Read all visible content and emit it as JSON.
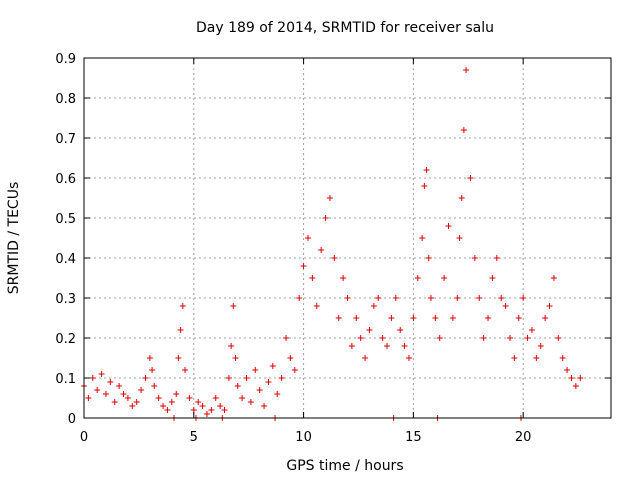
{
  "chart_data": {
    "type": "scatter",
    "title": "Day 189 of 2014, SRMTID for receiver salu",
    "xlabel": "GPS time / hours",
    "ylabel": "SRMTID / TECUs",
    "xlim": [
      0,
      24
    ],
    "ylim": [
      0,
      0.9
    ],
    "x_ticks": [
      0,
      5,
      10,
      15,
      20
    ],
    "x_tick_labels": [
      "0",
      "5",
      "10",
      "15",
      "20"
    ],
    "y_ticks": [
      0,
      0.1,
      0.2,
      0.3,
      0.4,
      0.5,
      0.6,
      0.7,
      0.8,
      0.9
    ],
    "y_tick_labels": [
      "0",
      "0.1",
      "0.2",
      "0.3",
      "0.4",
      "0.5",
      "0.6",
      "0.7",
      "0.8",
      "0.9"
    ],
    "grid": true,
    "marker": "+",
    "series": [
      {
        "name": "SRMTID",
        "color": "#e00000",
        "x": [
          0.0,
          0.2,
          0.4,
          0.6,
          0.8,
          1.0,
          1.2,
          1.4,
          1.6,
          1.8,
          2.0,
          2.2,
          2.4,
          2.6,
          2.8,
          3.0,
          3.1,
          3.2,
          3.4,
          3.6,
          3.8,
          4.0,
          4.2,
          4.3,
          4.4,
          4.5,
          4.6,
          4.8,
          5.0,
          5.2,
          5.4,
          5.6,
          5.8,
          6.0,
          6.2,
          6.4,
          6.6,
          6.7,
          6.8,
          6.9,
          7.0,
          7.2,
          7.4,
          7.6,
          7.8,
          8.0,
          8.2,
          8.4,
          8.6,
          8.8,
          9.0,
          9.2,
          9.4,
          9.6,
          9.8,
          10.0,
          10.2,
          10.4,
          10.6,
          10.8,
          11.0,
          11.2,
          11.4,
          11.6,
          11.8,
          12.0,
          12.2,
          12.4,
          12.6,
          12.8,
          13.0,
          13.2,
          13.4,
          13.6,
          13.8,
          14.0,
          14.2,
          14.4,
          14.6,
          14.8,
          15.0,
          15.2,
          15.4,
          15.5,
          15.6,
          15.7,
          15.8,
          16.0,
          16.2,
          16.4,
          16.6,
          16.8,
          17.0,
          17.1,
          17.2,
          17.3,
          17.4,
          17.6,
          17.8,
          18.0,
          18.2,
          18.4,
          18.6,
          18.8,
          19.0,
          19.2,
          19.4,
          19.6,
          19.8,
          20.0,
          20.2,
          20.4,
          20.6,
          20.8,
          21.0,
          21.2,
          21.4,
          21.6,
          21.8,
          22.0,
          22.2,
          22.4,
          22.6,
          4.1,
          5.1,
          6.3,
          8.7,
          14.1,
          16.1,
          19.9
        ],
        "y": [
          0.08,
          0.05,
          0.1,
          0.07,
          0.11,
          0.06,
          0.09,
          0.04,
          0.08,
          0.06,
          0.05,
          0.03,
          0.04,
          0.07,
          0.1,
          0.15,
          0.12,
          0.08,
          0.05,
          0.03,
          0.02,
          0.04,
          0.06,
          0.15,
          0.22,
          0.28,
          0.12,
          0.05,
          0.02,
          0.04,
          0.03,
          0.01,
          0.02,
          0.05,
          0.03,
          0.02,
          0.1,
          0.18,
          0.28,
          0.15,
          0.08,
          0.05,
          0.1,
          0.04,
          0.12,
          0.07,
          0.03,
          0.09,
          0.13,
          0.06,
          0.1,
          0.2,
          0.15,
          0.12,
          0.3,
          0.38,
          0.45,
          0.35,
          0.28,
          0.42,
          0.5,
          0.55,
          0.4,
          0.25,
          0.35,
          0.3,
          0.18,
          0.25,
          0.2,
          0.15,
          0.22,
          0.28,
          0.3,
          0.2,
          0.18,
          0.25,
          0.3,
          0.22,
          0.18,
          0.15,
          0.25,
          0.35,
          0.45,
          0.58,
          0.62,
          0.4,
          0.3,
          0.25,
          0.2,
          0.35,
          0.48,
          0.25,
          0.3,
          0.45,
          0.55,
          0.72,
          0.87,
          0.6,
          0.4,
          0.3,
          0.2,
          0.25,
          0.35,
          0.4,
          0.3,
          0.28,
          0.2,
          0.15,
          0.25,
          0.3,
          0.2,
          0.22,
          0.15,
          0.18,
          0.25,
          0.28,
          0.35,
          0.2,
          0.15,
          0.12,
          0.1,
          0.08,
          0.1,
          0.0,
          0.0,
          0.0,
          0.0,
          0.0,
          0.0,
          0.0
        ]
      }
    ]
  }
}
